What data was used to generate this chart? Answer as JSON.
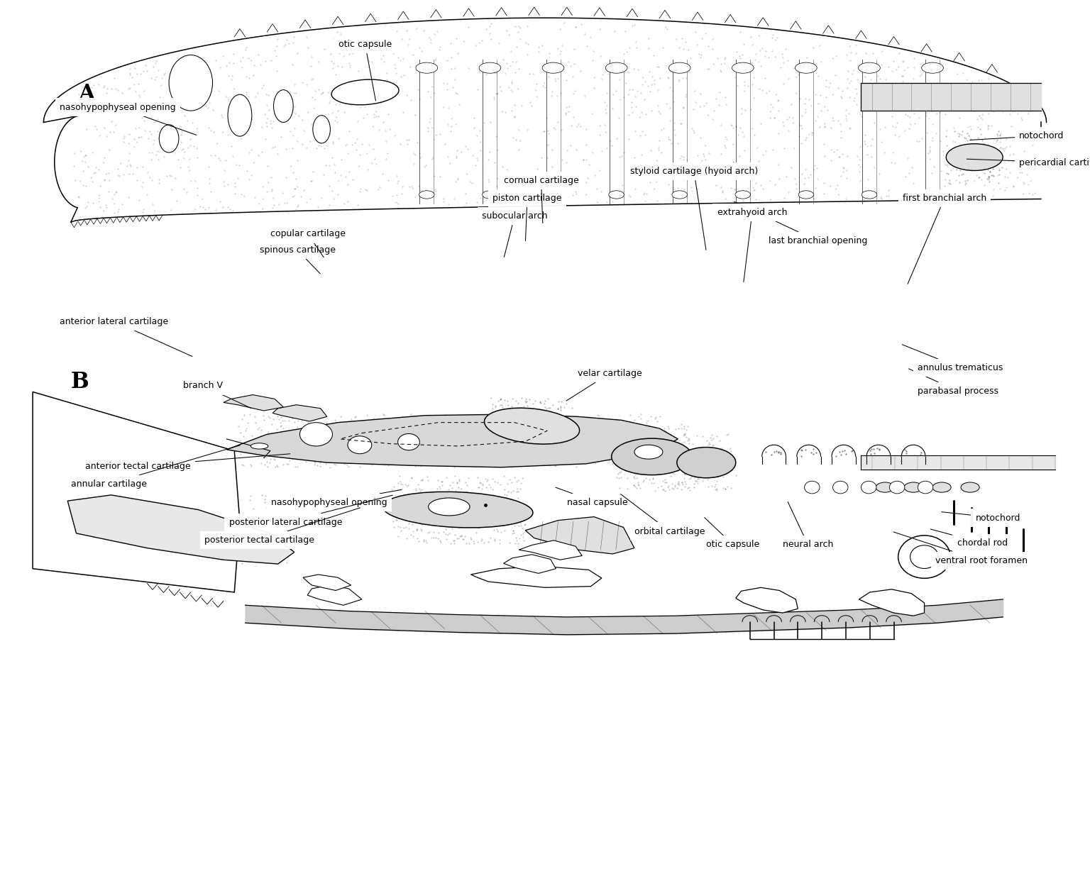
{
  "fig_width": 15.36,
  "fig_height": 12.59,
  "dpi": 100,
  "bg_color": "#ffffff",
  "label_A": "A",
  "label_B": "B",
  "panel_A_annotations": [
    {
      "text": "otic capsule",
      "xt": 0.335,
      "yt": 0.945,
      "xa": 0.345,
      "ya": 0.885,
      "ha": "center",
      "va": "bottom"
    },
    {
      "text": "nasohypophyseal opening",
      "xt": 0.055,
      "yt": 0.88,
      "xa": 0.182,
      "ya": 0.848,
      "ha": "left",
      "va": "center"
    },
    {
      "text": "notochord",
      "xt": 0.935,
      "yt": 0.848,
      "xa": 0.888,
      "ya": 0.843,
      "ha": "left",
      "va": "center"
    },
    {
      "text": "pericardial cartilage",
      "xt": 0.935,
      "yt": 0.818,
      "xa": 0.885,
      "ya": 0.822,
      "ha": "left",
      "va": "center"
    },
    {
      "text": "last branchial opening",
      "xt": 0.705,
      "yt": 0.73,
      "xa": 0.672,
      "ya": 0.775,
      "ha": "left",
      "va": "center"
    }
  ],
  "panel_B_annotations": [
    {
      "text": "nasal capsule",
      "xt": 0.548,
      "yt": 0.432,
      "xa": 0.508,
      "ya": 0.455,
      "ha": "center",
      "va": "bottom"
    },
    {
      "text": "nasohypophyseal opening",
      "xt": 0.302,
      "yt": 0.432,
      "xa": 0.37,
      "ya": 0.452,
      "ha": "center",
      "va": "bottom"
    },
    {
      "text": "posterior lateral cartilage",
      "xt": 0.262,
      "yt": 0.41,
      "xa": 0.362,
      "ya": 0.446,
      "ha": "center",
      "va": "bottom"
    },
    {
      "text": "posterior tectal cartilage",
      "xt": 0.238,
      "yt": 0.39,
      "xa": 0.332,
      "ya": 0.432,
      "ha": "center",
      "va": "bottom"
    },
    {
      "text": "orbital cartilage",
      "xt": 0.582,
      "yt": 0.405,
      "xa": 0.568,
      "ya": 0.448,
      "ha": "left",
      "va": "center"
    },
    {
      "text": "otic capsule",
      "xt": 0.648,
      "yt": 0.39,
      "xa": 0.645,
      "ya": 0.422,
      "ha": "left",
      "va": "center"
    },
    {
      "text": "neural arch",
      "xt": 0.718,
      "yt": 0.39,
      "xa": 0.722,
      "ya": 0.44,
      "ha": "left",
      "va": "center"
    },
    {
      "text": "ventral root foramen",
      "xt": 0.858,
      "yt": 0.372,
      "xa": 0.818,
      "ya": 0.405,
      "ha": "left",
      "va": "center"
    },
    {
      "text": "chordal rod",
      "xt": 0.878,
      "yt": 0.392,
      "xa": 0.852,
      "ya": 0.408,
      "ha": "left",
      "va": "center"
    },
    {
      "text": "notochord",
      "xt": 0.895,
      "yt": 0.42,
      "xa": 0.862,
      "ya": 0.427,
      "ha": "left",
      "va": "center"
    },
    {
      "text": "anterior tectal cartilage",
      "xt": 0.078,
      "yt": 0.478,
      "xa": 0.268,
      "ya": 0.492,
      "ha": "left",
      "va": "center"
    },
    {
      "text": "annular cartilage",
      "xt": 0.065,
      "yt": 0.458,
      "xa": 0.222,
      "ya": 0.502,
      "ha": "left",
      "va": "center"
    },
    {
      "text": "branch V",
      "xt": 0.168,
      "yt": 0.568,
      "xa": 0.232,
      "ya": 0.542,
      "ha": "left",
      "va": "center"
    },
    {
      "text": "anterior lateral cartilage",
      "xt": 0.055,
      "yt": 0.64,
      "xa": 0.178,
      "ya": 0.6,
      "ha": "left",
      "va": "center"
    },
    {
      "text": "spinous cartilage",
      "xt": 0.238,
      "yt": 0.72,
      "xa": 0.295,
      "ya": 0.692,
      "ha": "left",
      "va": "center"
    },
    {
      "text": "copular cartilage",
      "xt": 0.248,
      "yt": 0.738,
      "xa": 0.298,
      "ya": 0.71,
      "ha": "left",
      "va": "center"
    },
    {
      "text": "velar cartilage",
      "xt": 0.53,
      "yt": 0.582,
      "xa": 0.518,
      "ya": 0.55,
      "ha": "left",
      "va": "center"
    },
    {
      "text": "subocular arch",
      "xt": 0.442,
      "yt": 0.758,
      "xa": 0.462,
      "ya": 0.71,
      "ha": "left",
      "va": "center"
    },
    {
      "text": "piston cartilage",
      "xt": 0.452,
      "yt": 0.778,
      "xa": 0.482,
      "ya": 0.728,
      "ha": "left",
      "va": "center"
    },
    {
      "text": "cornual cartilage",
      "xt": 0.462,
      "yt": 0.798,
      "xa": 0.498,
      "ya": 0.748,
      "ha": "left",
      "va": "center"
    },
    {
      "text": "extrahyoid arch",
      "xt": 0.658,
      "yt": 0.762,
      "xa": 0.682,
      "ya": 0.682,
      "ha": "left",
      "va": "center"
    },
    {
      "text": "styloid cartilage (hyoid arch)",
      "xt": 0.578,
      "yt": 0.808,
      "xa": 0.648,
      "ya": 0.718,
      "ha": "left",
      "va": "center"
    },
    {
      "text": "first branchial arch",
      "xt": 0.828,
      "yt": 0.778,
      "xa": 0.832,
      "ya": 0.68,
      "ha": "left",
      "va": "center"
    },
    {
      "text": "parabasal process",
      "xt": 0.842,
      "yt": 0.562,
      "xa": 0.832,
      "ya": 0.588,
      "ha": "left",
      "va": "center"
    },
    {
      "text": "annulus trematicus",
      "xt": 0.842,
      "yt": 0.588,
      "xa": 0.826,
      "ya": 0.615,
      "ha": "left",
      "va": "center"
    }
  ]
}
